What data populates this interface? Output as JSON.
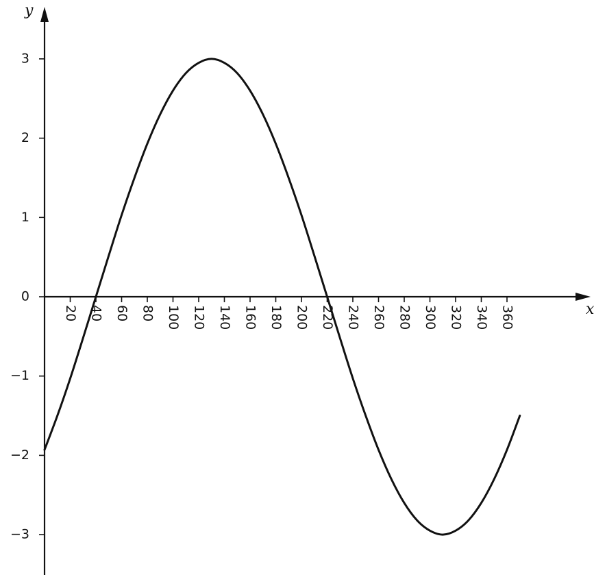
{
  "chart_data": {
    "type": "line",
    "title": "",
    "xlabel": "x",
    "ylabel": "y",
    "xlim": [
      0,
      370
    ],
    "ylim": [
      -3.5,
      3.5
    ],
    "x_ticks": [
      20,
      40,
      60,
      80,
      100,
      120,
      140,
      160,
      180,
      200,
      220,
      240,
      260,
      280,
      300,
      320,
      340,
      360
    ],
    "x_tick_labels": [
      "20",
      "40",
      "60",
      "80",
      "100",
      "120",
      "140",
      "160",
      "180",
      "200",
      "220",
      "240",
      "260",
      "280",
      "300",
      "320",
      "340",
      "360"
    ],
    "y_ticks": [
      -3,
      -2,
      -1,
      0,
      1,
      2,
      3
    ],
    "y_tick_labels": [
      "−3",
      "−2",
      "−1",
      "0",
      "1",
      "2",
      "3"
    ],
    "grid": false,
    "legend": "none",
    "series": [
      {
        "x": [
          0,
          10,
          20,
          30,
          40,
          50,
          60,
          70,
          80,
          90,
          100,
          110,
          120,
          130,
          140,
          150,
          160,
          170,
          180,
          190,
          200,
          210,
          220,
          230,
          240,
          250,
          260,
          270,
          280,
          290,
          300,
          310,
          320,
          330,
          340,
          350,
          360,
          370
        ],
        "values": [
          -1.93,
          -1.5,
          -1.03,
          -0.52,
          0.0,
          0.52,
          1.03,
          1.5,
          1.93,
          2.3,
          2.6,
          2.82,
          2.95,
          3.0,
          2.95,
          2.82,
          2.6,
          2.3,
          1.93,
          1.5,
          1.03,
          0.52,
          0.0,
          -0.52,
          -1.03,
          -1.5,
          -1.93,
          -2.3,
          -2.6,
          -2.82,
          -2.95,
          -3.0,
          -2.95,
          -2.82,
          -2.6,
          -2.3,
          -1.93,
          -1.5
        ]
      }
    ]
  }
}
